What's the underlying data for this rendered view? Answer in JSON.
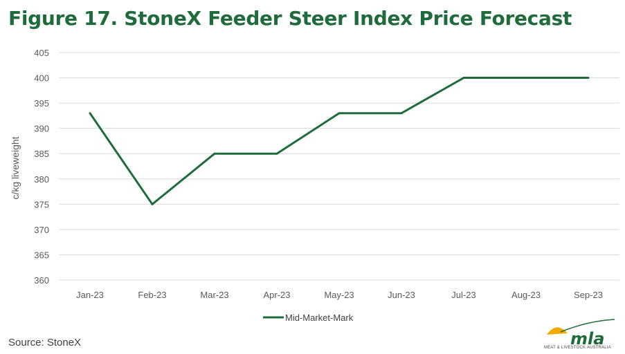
{
  "chart_data": {
    "type": "line",
    "title": "Figure 17. StoneX Feeder Steer Index Price Forecast",
    "ylabel": "c/kg liveweight",
    "xlabel": "",
    "categories": [
      "Jan-23",
      "Feb-23",
      "Mar-23",
      "Apr-23",
      "May-23",
      "Jun-23",
      "Jul-23",
      "Aug-23",
      "Sep-23"
    ],
    "series": [
      {
        "name": "Mid-Market-Mark",
        "values": [
          393,
          375,
          385,
          385,
          393,
          393,
          400,
          400,
          400
        ]
      }
    ],
    "ylim": [
      360,
      405
    ],
    "yticks": [
      360,
      365,
      370,
      375,
      380,
      385,
      390,
      395,
      400,
      405
    ],
    "grid": true,
    "legend": "bottom",
    "colors": {
      "line": "#1e6b3b",
      "grid": "#d9d9d9",
      "title": "#1e6b3b"
    }
  },
  "source": "Source: StoneX",
  "logo": {
    "text": "mla",
    "subtext": "MEAT & LIVESTOCK AUSTRALIA",
    "icon": "mla-logo"
  }
}
